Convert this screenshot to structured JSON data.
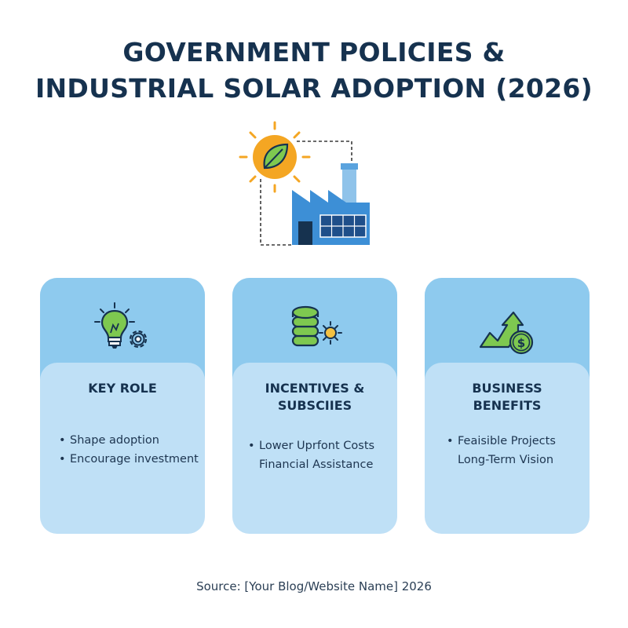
{
  "title": {
    "line1": "GOVERNMENT POLICIES &",
    "line2": "INDUSTRIAL SOLAR ADOPTION (2026)"
  },
  "hero": {
    "icon": "sun-leaf-factory-solar-icon"
  },
  "colors": {
    "title": "#16324f",
    "card_top": "#8ecaee",
    "card_body": "#bfe0f6",
    "green": "#6cbf3a",
    "sun": "#f4a623",
    "factory": "#3d8fd6"
  },
  "cards": [
    {
      "icon": "lightbulb-gear-icon",
      "title_line1": "KEY ROLE",
      "title_line2": "",
      "items": [
        "Shape adoption",
        "Encourage investment"
      ],
      "bullets": [
        "•",
        "•"
      ]
    },
    {
      "icon": "coin-stack-sun-icon",
      "title_line1": "INCENTIVES &",
      "title_line2": "SUBSCIIES",
      "items": [
        "Lower Uprfont Costs",
        "Financial Assistance"
      ],
      "bullets": [
        "•",
        ""
      ]
    },
    {
      "icon": "arrow-up-dollar-icon",
      "title_line1": "BUSINESS",
      "title_line2": "BENEFITS",
      "items": [
        "Feaisible Projects",
        "Long-Term Vision"
      ],
      "bullets": [
        "•",
        ""
      ]
    }
  ],
  "source": "Source: [Your Blog/Website Name] 2026"
}
